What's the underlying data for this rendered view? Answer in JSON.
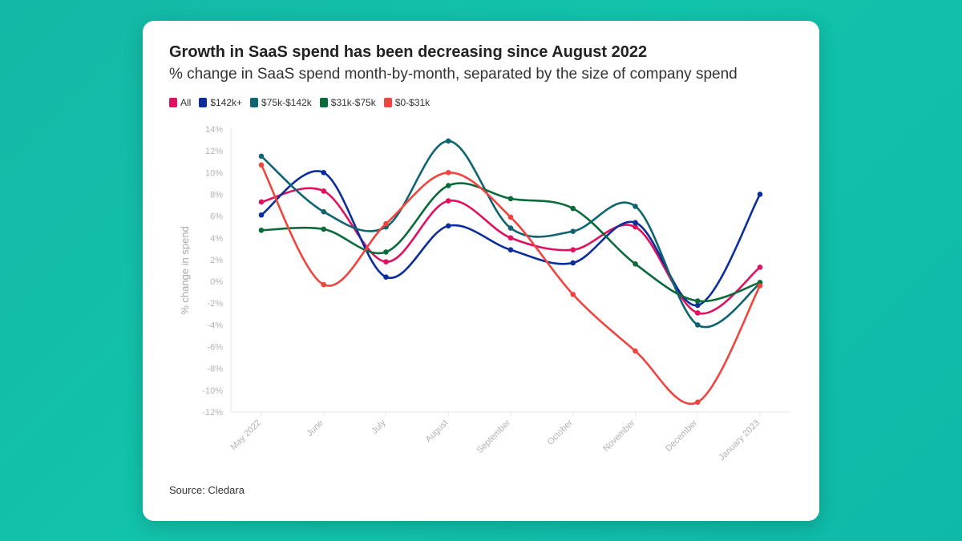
{
  "chart_data": {
    "type": "line",
    "title": "Growth in SaaS spend has been decreasing since August 2022",
    "subtitle": "% change in SaaS spend month-by-month, separated by the size of company spend",
    "ylabel": "% change in spend",
    "xlabel": "",
    "categories": [
      "May 2022",
      "June",
      "July",
      "August",
      "September",
      "October",
      "November",
      "December",
      "January 2023"
    ],
    "ylim": [
      -12,
      14
    ],
    "yticks": [
      14,
      12,
      10,
      8,
      6,
      4,
      2,
      0,
      -2,
      -4,
      -6,
      -8,
      -10,
      -12
    ],
    "ytick_labels": [
      "14%",
      "12%",
      "10%",
      "8%",
      "6%",
      "4%",
      "2%",
      "0%",
      "-2%",
      "-4%",
      "-6%",
      "-8%",
      "-10%",
      "-12%"
    ],
    "series": [
      {
        "name": "All",
        "color": "#e0115f",
        "values": [
          7.3,
          8.3,
          1.8,
          7.4,
          4.0,
          2.9,
          5.0,
          -2.9,
          1.3
        ]
      },
      {
        "name": "$142k+",
        "color": "#0c2d9c",
        "values": [
          6.1,
          10.0,
          0.4,
          5.1,
          2.9,
          1.7,
          5.4,
          -2.2,
          8.0
        ]
      },
      {
        "name": "$75k-$142k",
        "color": "#0e6470",
        "values": [
          11.5,
          6.4,
          5.0,
          12.9,
          4.9,
          4.6,
          6.9,
          -4.0,
          -0.2
        ]
      },
      {
        "name": "$31k-$75k",
        "color": "#0a6b3a",
        "values": [
          4.7,
          4.8,
          2.7,
          8.8,
          7.6,
          6.7,
          1.6,
          -1.8,
          -0.1
        ]
      },
      {
        "name": "$0-$31k",
        "color": "#f0443f",
        "values": [
          10.7,
          -0.3,
          5.3,
          10.0,
          5.9,
          -1.2,
          -6.4,
          -11.1,
          -0.4
        ]
      }
    ],
    "source": "Source: Cledara"
  }
}
